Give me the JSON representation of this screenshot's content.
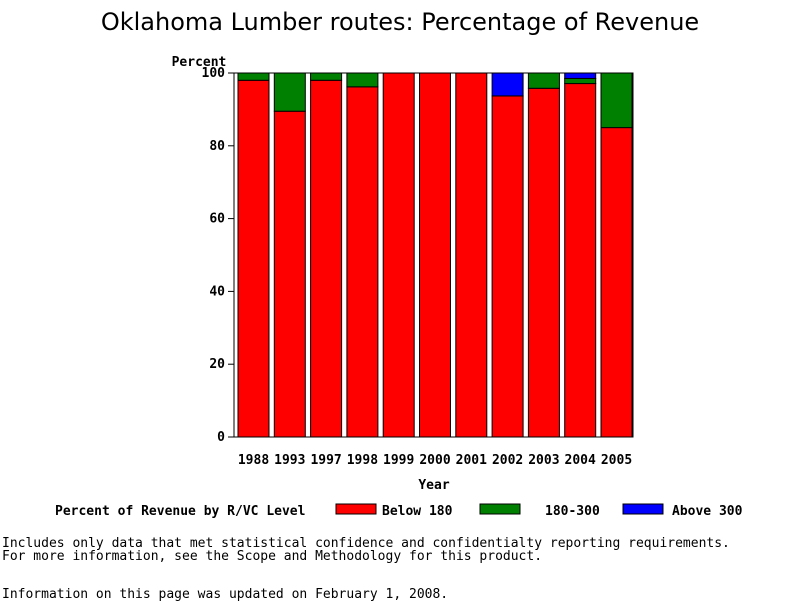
{
  "chart_data": {
    "type": "bar",
    "stacked": true,
    "title": "Oklahoma Lumber routes: Percentage of Revenue",
    "ylabel": "Percent",
    "xlabel": "Year",
    "ylim": [
      0,
      100
    ],
    "yticks": [
      0,
      20,
      40,
      60,
      80,
      100
    ],
    "categories": [
      "1988",
      "1993",
      "1997",
      "1998",
      "1999",
      "2000",
      "2001",
      "2002",
      "2003",
      "2004",
      "2005"
    ],
    "series": [
      {
        "name": "Below 180",
        "color": "#ff0000",
        "values": [
          98,
          89.5,
          98,
          96.2,
          100,
          100,
          100,
          93.7,
          95.8,
          97.1,
          85
        ]
      },
      {
        "name": "180-300",
        "color": "#008000",
        "values": [
          2,
          10.5,
          2,
          3.8,
          0,
          0,
          0,
          0,
          4.2,
          1.4,
          15
        ]
      },
      {
        "name": "Above 300",
        "color": "#0000ff",
        "values": [
          0,
          0,
          0,
          0,
          0,
          0,
          0,
          6.3,
          0,
          1.5,
          0
        ]
      }
    ],
    "legend": {
      "title": "Percent of Revenue by R/VC Level",
      "placement": "bottom"
    }
  },
  "notes": {
    "line1": "Includes only data that met statistical confidence and confidentialty reporting requirements.",
    "line2": "For more information, see the Scope and Methodology for this product.",
    "updated": "Information on this page was updated on February 1, 2008."
  }
}
